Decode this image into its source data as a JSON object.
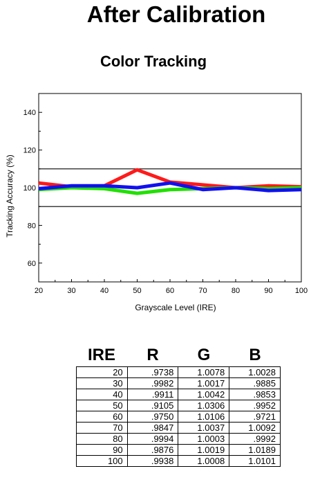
{
  "page": {
    "title": "After Calibration"
  },
  "chart_data": {
    "type": "line",
    "title": "Color Tracking",
    "xlabel": "Grayscale Level (IRE)",
    "ylabel": "Tracking Accuracy (%)",
    "x": [
      20,
      30,
      40,
      50,
      60,
      70,
      80,
      90,
      100
    ],
    "xlim": [
      20,
      100
    ],
    "ylim": [
      50,
      150
    ],
    "yticks": [
      60,
      80,
      100,
      120,
      140
    ],
    "grid": false,
    "reference_lines": [
      90,
      110
    ],
    "series": [
      {
        "color": "#ff1a1a",
        "values": [
          102.5,
          100.5,
          101.0,
          109.5,
          103.0,
          101.5,
          100.0,
          101.0,
          100.5
        ]
      },
      {
        "color": "#22e000",
        "values": [
          99.0,
          100.0,
          99.5,
          97.0,
          99.0,
          99.5,
          100.0,
          99.5,
          100.0
        ]
      },
      {
        "color": "#1010f0",
        "values": [
          99.5,
          101.0,
          101.0,
          100.0,
          102.5,
          99.0,
          100.0,
          98.5,
          99.0
        ]
      }
    ]
  },
  "table": {
    "headers": [
      "IRE",
      "R",
      "G",
      "B"
    ],
    "rows": [
      [
        "20",
        ".9738",
        "1.0078",
        "1.0028"
      ],
      [
        "30",
        ".9982",
        "1.0017",
        ".9885"
      ],
      [
        "40",
        ".9911",
        "1.0042",
        ".9853"
      ],
      [
        "50",
        ".9105",
        "1.0306",
        ".9952"
      ],
      [
        "60",
        ".9750",
        "1.0106",
        ".9721"
      ],
      [
        "70",
        ".9847",
        "1.0037",
        "1.0092"
      ],
      [
        "80",
        ".9994",
        "1.0003",
        ".9992"
      ],
      [
        "90",
        ".9876",
        "1.0019",
        "1.0189"
      ],
      [
        "100",
        ".9938",
        "1.0008",
        "1.0101"
      ]
    ]
  }
}
